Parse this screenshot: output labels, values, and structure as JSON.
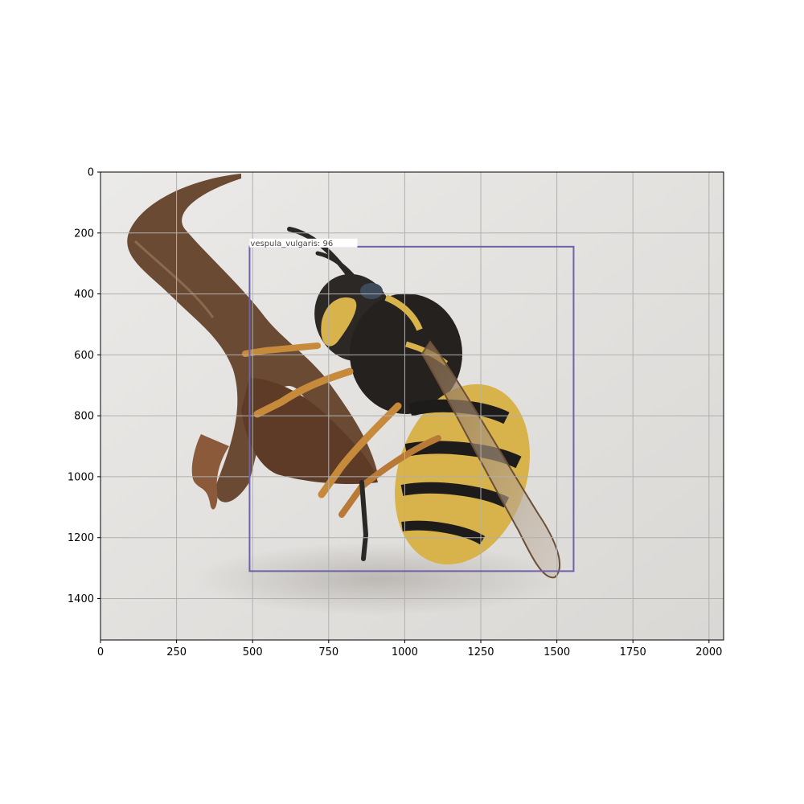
{
  "figure": {
    "image_size": {
      "width": 2048,
      "height": 1536
    },
    "x_axis": {
      "ticks": [
        0,
        250,
        500,
        750,
        1000,
        1250,
        1500,
        1750,
        2000
      ]
    },
    "y_axis": {
      "ticks": [
        0,
        200,
        400,
        600,
        800,
        1000,
        1200,
        1400
      ],
      "inverted": true
    },
    "grid": true
  },
  "detection": {
    "label": "vespula_vulgaris: 96",
    "class": "vespula_vulgaris",
    "score": 96,
    "box": {
      "x_min": 490,
      "y_min": 245,
      "x_max": 1555,
      "y_max": 1310
    },
    "color": "#6e62a8"
  },
  "photo": {
    "subject": "wasp on a dried twig",
    "colors": {
      "background": "#e6e4e1",
      "twig": "#6b4a33",
      "wasp_yellow": "#d8b24a",
      "wasp_black": "#1e1c1a"
    }
  }
}
